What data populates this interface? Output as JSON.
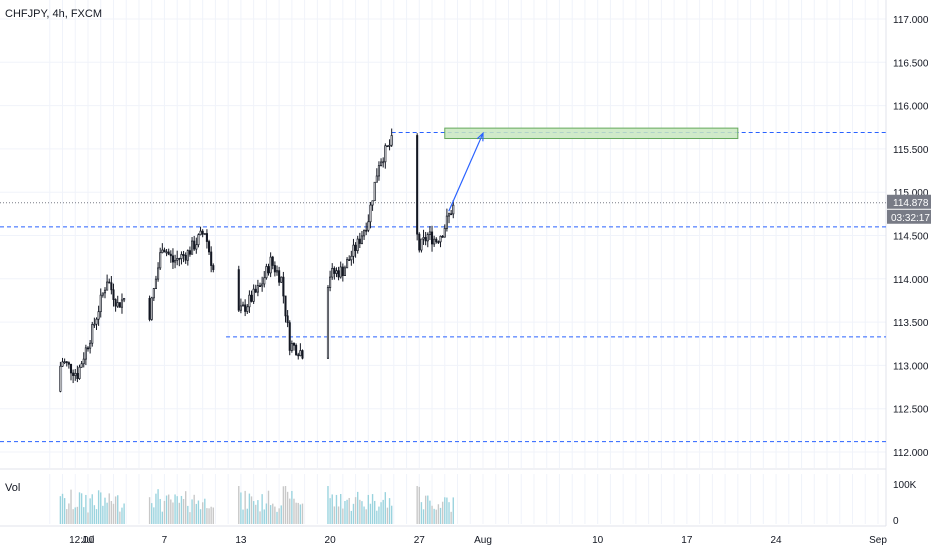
{
  "header": {
    "symbol_label": "CHFJPY, 4h, FXCM"
  },
  "volume_pane": {
    "label": "Vol",
    "axis_labels": [
      "100K",
      "0"
    ]
  },
  "colors": {
    "up": "#131722",
    "down": "#131722",
    "vol_up": "#9ad3de",
    "vol_down": "#c8c8c8",
    "level_line": "#2962ff",
    "zone_fill": "#c8e6c0",
    "zone_stroke": "#66a95d",
    "arrow": "#2962ff",
    "price_tag": "#787b86"
  },
  "chart_data": {
    "type": "candlestick",
    "symbol": "CHFJPY",
    "interval": "4h",
    "source": "FXCM",
    "y_ticks": [
      "117.000",
      "116.500",
      "116.000",
      "115.500",
      "115.000",
      "114.500",
      "114.000",
      "113.500",
      "113.000",
      "112.500",
      "112.000"
    ],
    "x_ticks": [
      "12:00",
      "Jul",
      "7",
      "13",
      "20",
      "27",
      "Aug",
      "10",
      "17",
      "24",
      "Sep"
    ],
    "ylim": [
      111.9,
      117.1
    ],
    "current_price": "114.878",
    "countdown": "03:32:17",
    "horizontal_levels": [
      115.69,
      114.6,
      113.33,
      112.12
    ],
    "target_zone": {
      "low": 115.62,
      "high": 115.74,
      "start_date": "Jul 29",
      "end_date": "Aug 21"
    },
    "projection": {
      "from_date": "Jul 29",
      "from": 114.78,
      "to_date": "Aug 1",
      "to": 115.68
    },
    "anchors": [
      {
        "t": "Jun 28 00:00",
        "p": 112.7
      },
      {
        "t": "Jun 29 00:00",
        "p": 113.05
      },
      {
        "t": "Jun 30 04:00",
        "p": 112.9
      },
      {
        "t": "Jul 1 08:00",
        "p": 113.4
      },
      {
        "t": "Jul 2 12:00",
        "p": 114.0
      },
      {
        "t": "Jul 3 08:00",
        "p": 113.7
      },
      {
        "t": "Jul 4 16:00",
        "p": 113.9
      },
      {
        "t": "Jul 5 20:00",
        "p": 113.6
      },
      {
        "t": "Jul 6 20:00",
        "p": 114.4
      },
      {
        "t": "Jul 7 16:00",
        "p": 114.2
      },
      {
        "t": "Jul 8 20:00",
        "p": 114.3
      },
      {
        "t": "Jul 10 04:00",
        "p": 114.55
      },
      {
        "t": "Jul 10 20:00",
        "p": 114.1
      },
      {
        "t": "Jul 11 20:00",
        "p": 113.45
      },
      {
        "t": "Jul 13 04:00",
        "p": 113.65
      },
      {
        "t": "Jul 14 12:00",
        "p": 113.9
      },
      {
        "t": "Jul 15 08:00",
        "p": 114.2
      },
      {
        "t": "Jul 16 04:00",
        "p": 114.0
      },
      {
        "t": "Jul 16 20:00",
        "p": 113.25
      },
      {
        "t": "Jul 17 20:00",
        "p": 113.15
      },
      {
        "t": "Jul 19 04:00",
        "p": 113.6
      },
      {
        "t": "Jul 20 00:00",
        "p": 114.05
      },
      {
        "t": "Jul 21 00:00",
        "p": 114.1
      },
      {
        "t": "Jul 22 04:00",
        "p": 114.4
      },
      {
        "t": "Jul 23 00:00",
        "p": 114.7
      },
      {
        "t": "Jul 23 20:00",
        "p": 115.35
      },
      {
        "t": "Jul 24 20:00",
        "p": 115.58
      },
      {
        "t": "Jul 25 16:00",
        "p": 115.2
      },
      {
        "t": "Jul 26 08:00",
        "p": 114.9
      },
      {
        "t": "Jul 27 00:00",
        "p": 114.35
      },
      {
        "t": "Jul 27 16:00",
        "p": 114.5
      },
      {
        "t": "Jul 28 08:00",
        "p": 114.45
      },
      {
        "t": "Jul 28 20:00",
        "p": 114.55
      },
      {
        "t": "Jul 29 16:00",
        "p": 114.85
      }
    ]
  }
}
